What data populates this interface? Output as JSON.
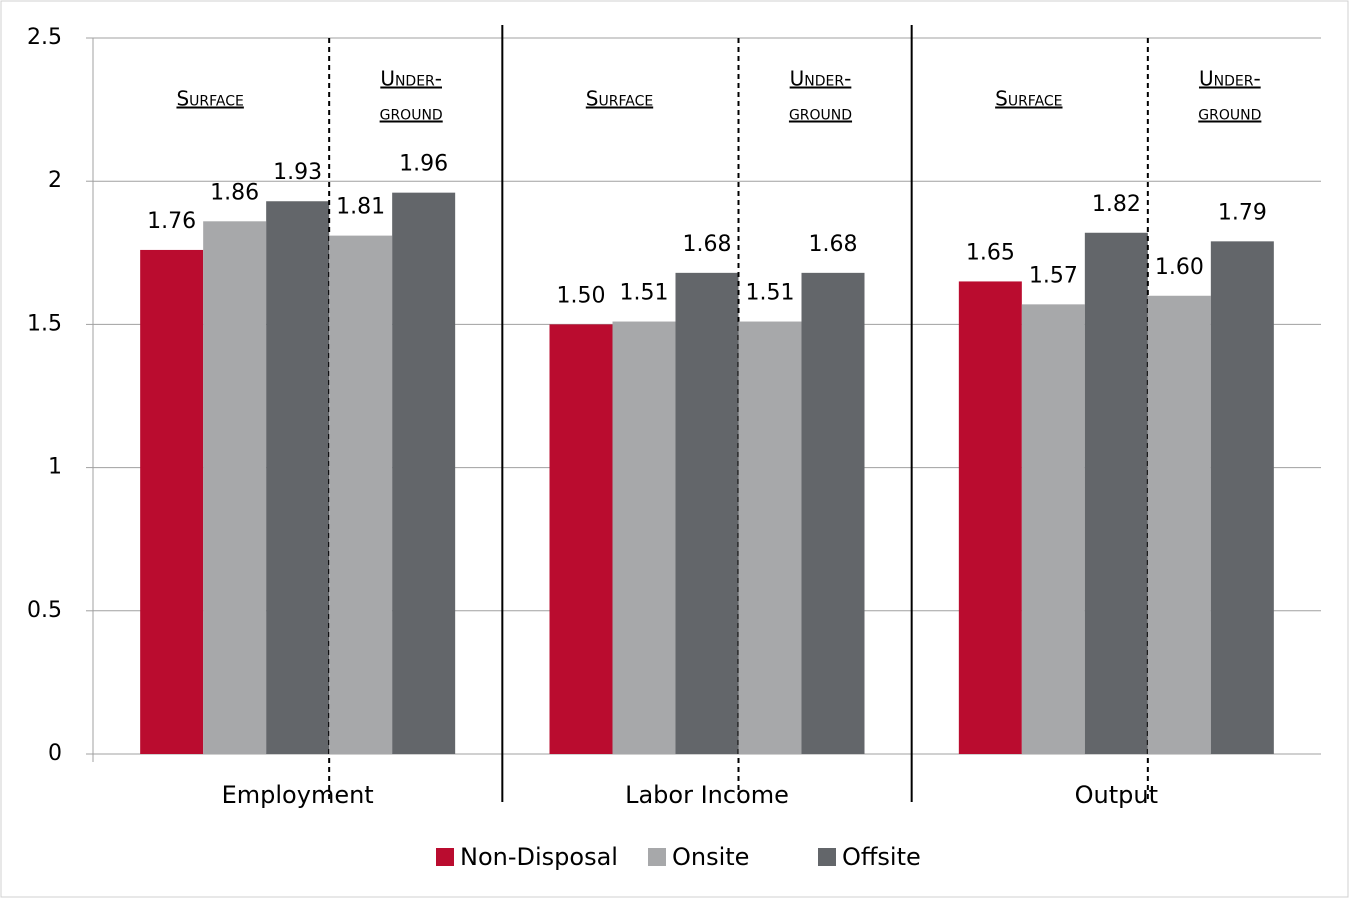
{
  "chart_data": {
    "type": "bar",
    "categories": [
      "Employment",
      "Labor Income",
      "Output"
    ],
    "surface_label": "Surface",
    "underground_label": [
      "Under-",
      "ground"
    ],
    "series": [
      {
        "name": "Non-Disposal",
        "color": "#ba0c2f",
        "values": [
          1.76,
          1.5,
          1.65
        ],
        "value_labels": [
          "1.76",
          "1.50",
          "1.65"
        ]
      },
      {
        "name": "Onsite",
        "color": "#a7a8aa",
        "values": [
          1.86,
          1.51,
          1.57
        ],
        "value_labels": [
          "1.86",
          "1.51",
          "1.57"
        ],
        "underground_values": [
          1.81,
          1.51,
          1.6
        ],
        "underground_value_labels": [
          "1.81",
          "1.51",
          "1.60"
        ]
      },
      {
        "name": "Offsite",
        "color": "#63666a",
        "values": [
          1.93,
          1.68,
          1.82
        ],
        "value_labels": [
          "1.93",
          "1.68",
          "1.82"
        ],
        "underground_values": [
          1.96,
          1.68,
          1.79
        ],
        "underground_value_labels": [
          "1.96",
          "1.68",
          "1.79"
        ]
      }
    ],
    "ylim": [
      0,
      2.5
    ],
    "yticks": [
      0,
      0.5,
      1,
      1.5,
      2,
      2.5
    ],
    "grid": true,
    "legend": "bottom"
  }
}
